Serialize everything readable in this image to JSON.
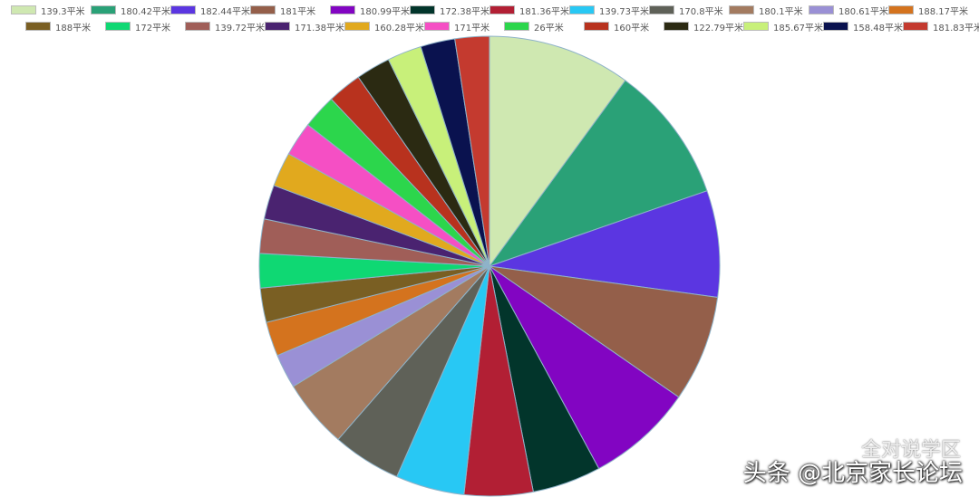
{
  "chart_data": {
    "type": "pie",
    "title": "",
    "legend_position": "top",
    "slices": [
      {
        "label": "139.3平米",
        "value": 10.2,
        "color": "#cfe8b1"
      },
      {
        "label": "180.42平米",
        "value": 9.8,
        "color": "#2aa177"
      },
      {
        "label": "182.44平米",
        "value": 7.6,
        "color": "#5b36e1"
      },
      {
        "label": "181平米",
        "value": 7.6,
        "color": "#945f4a"
      },
      {
        "label": "180.99平米",
        "value": 7.6,
        "color": "#8205c2"
      },
      {
        "label": "172.38平米",
        "value": 4.9,
        "color": "#02352b"
      },
      {
        "label": "181.36平米",
        "value": 4.9,
        "color": "#b21f34"
      },
      {
        "label": "139.73平米",
        "value": 4.9,
        "color": "#28c8f4"
      },
      {
        "label": "170.8平米",
        "value": 4.9,
        "color": "#5f6158"
      },
      {
        "label": "180.1平米",
        "value": 4.9,
        "color": "#a37b60"
      },
      {
        "label": "180.61平米",
        "value": 2.45,
        "color": "#9a90d5"
      },
      {
        "label": "188.17平米",
        "value": 2.45,
        "color": "#d4731e"
      },
      {
        "label": "188平米",
        "value": 2.45,
        "color": "#7a5f23"
      },
      {
        "label": "172平米",
        "value": 2.45,
        "color": "#0fd873"
      },
      {
        "label": "139.72平米",
        "value": 2.45,
        "color": "#a05e58"
      },
      {
        "label": "171.38平米",
        "value": 2.45,
        "color": "#4a2370"
      },
      {
        "label": "160.28平米",
        "value": 2.45,
        "color": "#e1a91e"
      },
      {
        "label": "171平米",
        "value": 2.45,
        "color": "#f54fc4"
      },
      {
        "label": "26平米",
        "value": 2.45,
        "color": "#2cd64c"
      },
      {
        "label": "160平米",
        "value": 2.45,
        "color": "#b8321e"
      },
      {
        "label": "122.79平米",
        "value": 2.45,
        "color": "#2b2a12"
      },
      {
        "label": "185.67平米",
        "value": 2.45,
        "color": "#c8f07a"
      },
      {
        "label": "158.48平米",
        "value": 2.45,
        "color": "#0a124f"
      },
      {
        "label": "181.83平米",
        "value": 2.45,
        "color": "#c43a2f"
      }
    ]
  },
  "watermark": {
    "line1": "全对说学区",
    "line2": "头条 @北京家长论坛"
  }
}
